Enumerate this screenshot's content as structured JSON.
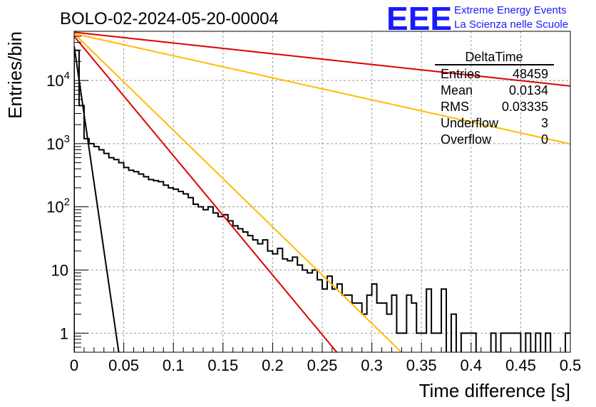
{
  "chart_data": {
    "type": "histogram",
    "title": "BOLO-02-2024-05-20-00004",
    "xlabel": "Time difference [s]",
    "ylabel": "Entries/bin",
    "xlim": [
      0,
      0.5
    ],
    "ylim": [
      0.5,
      60000
    ],
    "yscale": "log",
    "grid": true,
    "x_ticks": [
      "0",
      "0.05",
      "0.1",
      "0.15",
      "0.2",
      "0.25",
      "0.3",
      "0.35",
      "0.4",
      "0.45",
      "0.5"
    ],
    "y_ticks": [
      {
        "value": 1,
        "label": "1"
      },
      {
        "value": 10,
        "label": "10"
      },
      {
        "value": 100,
        "label": "10",
        "exp": "2"
      },
      {
        "value": 1000,
        "label": "10",
        "exp": "3"
      },
      {
        "value": 10000,
        "label": "10",
        "exp": "4"
      }
    ],
    "bin_width": 0.005,
    "series": [
      {
        "name": "DeltaTime",
        "type": "histogram",
        "color": "#000000",
        "values": [
          30000,
          4000,
          1200,
          1000,
          900,
          800,
          700,
          600,
          560,
          500,
          420,
          380,
          360,
          330,
          300,
          270,
          260,
          250,
          220,
          200,
          190,
          175,
          160,
          140,
          110,
          100,
          90,
          100,
          80,
          70,
          75,
          60,
          50,
          45,
          40,
          35,
          30,
          26,
          30,
          20,
          18,
          22,
          15,
          14,
          16,
          12,
          10,
          9,
          10,
          7,
          5,
          8,
          5,
          6,
          4,
          4,
          3,
          3,
          2,
          4,
          6,
          3,
          3,
          2,
          4,
          1,
          1,
          4,
          3,
          1,
          1,
          5,
          1,
          1,
          5,
          0,
          2,
          0,
          1,
          1,
          1,
          0,
          0,
          0,
          1,
          0.5,
          1,
          1,
          1,
          1,
          0,
          1,
          0.5,
          1,
          0,
          1,
          0,
          0,
          0,
          1
        ]
      },
      {
        "name": "fit-steep",
        "type": "function",
        "color": "#000000",
        "amplitude": 35000,
        "slope": -0.2482
      },
      {
        "name": "fit-red-steep",
        "type": "function",
        "color": "#dd0000",
        "amplitude": 50000,
        "slope": -0.0435
      },
      {
        "name": "fit-orange-steep",
        "type": "function",
        "color": "#ffbb00",
        "amplitude": 55000,
        "slope": -0.0352
      },
      {
        "name": "fit-red-flat",
        "type": "function",
        "color": "#dd0000",
        "amplitude": 58000,
        "slope": -0.00392
      },
      {
        "name": "fit-orange-flat",
        "type": "function",
        "color": "#ffbb00",
        "amplitude": 55000,
        "slope": -0.00804
      }
    ],
    "stats_box": {
      "name": "DeltaTime",
      "rows": [
        {
          "label": "Entries",
          "value": "48459"
        },
        {
          "label": "Mean",
          "value": "0.0134"
        },
        {
          "label": "RMS",
          "value": "0.03335"
        },
        {
          "label": "Underflow",
          "value": "3"
        },
        {
          "label": "Overflow",
          "value": "0"
        }
      ]
    }
  },
  "logo": {
    "text": "EEE",
    "line1": "Extreme Energy Events",
    "line2": "La Scienza nelle Scuole",
    "color": "#1a1aff"
  }
}
